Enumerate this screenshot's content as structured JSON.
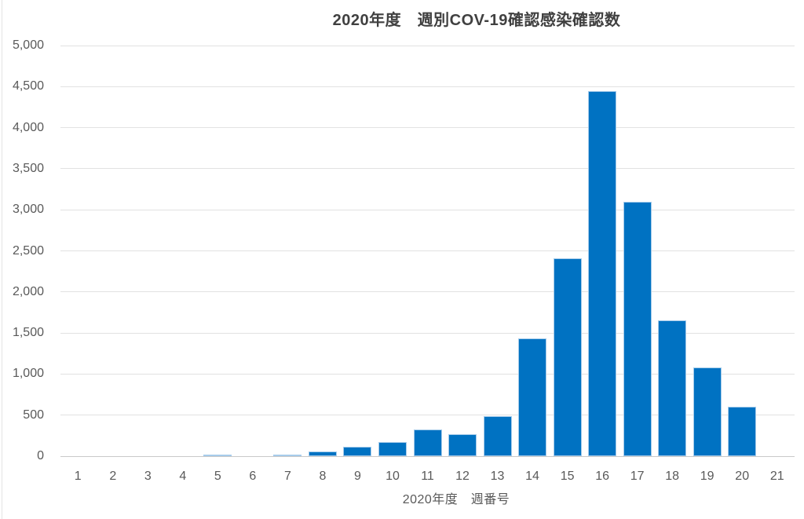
{
  "chart_data": {
    "type": "bar",
    "title": "2020年度　週別COV-19確認感染確認数",
    "xlabel": "2020年度　週番号",
    "ylabel": "",
    "categories": [
      "1",
      "2",
      "3",
      "4",
      "5",
      "6",
      "7",
      "8",
      "9",
      "10",
      "11",
      "12",
      "13",
      "14",
      "15",
      "16",
      "17",
      "18",
      "19",
      "20",
      "21"
    ],
    "values": [
      0,
      0,
      0,
      0,
      20,
      0,
      20,
      55,
      115,
      170,
      325,
      270,
      490,
      1430,
      2410,
      4450,
      3100,
      1650,
      1080,
      600,
      0
    ],
    "ylim": [
      0,
      5000
    ],
    "ytick_step": 500,
    "ytick_labels": [
      "0",
      "500",
      "1,000",
      "1,500",
      "2,000",
      "2,500",
      "3,000",
      "3,500",
      "4,000",
      "4,500",
      "5,000"
    ],
    "grid": true,
    "legend": "none",
    "colors": {
      "bar_fill": "#0072c2",
      "bar_border": "#a6cbea",
      "gridline": "#e2e2e2",
      "axis_line": "#c9c9c9",
      "tick_label": "#595959",
      "title": "#404040",
      "background": "#ffffff"
    }
  }
}
